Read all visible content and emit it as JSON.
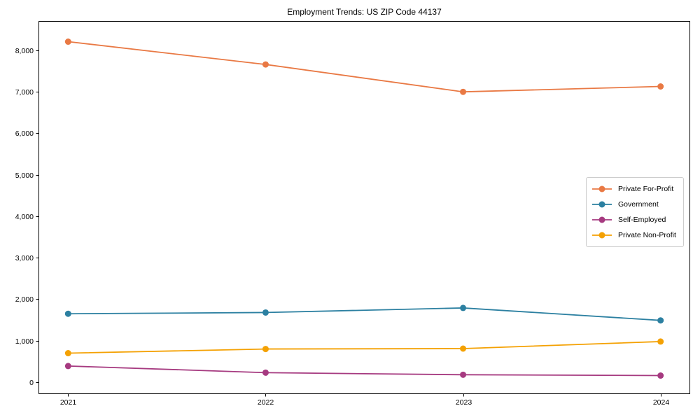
{
  "figure": {
    "title": "Employment Trends: US ZIP Code 44137",
    "background_color": "#ffffff",
    "spine_color": "#000000"
  },
  "chart_data": {
    "type": "line",
    "title": "Employment Trends: US ZIP Code 44137",
    "xlabel": "",
    "ylabel": "",
    "x": [
      2021,
      2022,
      2023,
      2024
    ],
    "x_tick_labels": [
      "2021",
      "2022",
      "2023",
      "2024"
    ],
    "y_ticks": [
      0,
      1000,
      2000,
      3000,
      4000,
      5000,
      6000,
      7000,
      8000
    ],
    "y_tick_labels": [
      "0",
      "1,000",
      "2,000",
      "3,000",
      "4,000",
      "5,000",
      "6,000",
      "7,000",
      "8,000"
    ],
    "xlim": [
      2020.85,
      2024.15
    ],
    "ylim": [
      -287,
      8708
    ],
    "grid": false,
    "legend_position": "center right",
    "marker": "circle",
    "series": [
      {
        "name": "Private For-Profit",
        "color": "#e97944",
        "values": [
          8210,
          7660,
          7000,
          7130
        ]
      },
      {
        "name": "Government",
        "color": "#2c80a1",
        "values": [
          1650,
          1680,
          1790,
          1490
        ]
      },
      {
        "name": "Self-Employed",
        "color": "#a63a80",
        "values": [
          390,
          230,
          180,
          160
        ]
      },
      {
        "name": "Private Non-Profit",
        "color": "#f4a103",
        "values": [
          700,
          800,
          810,
          980
        ]
      }
    ]
  }
}
